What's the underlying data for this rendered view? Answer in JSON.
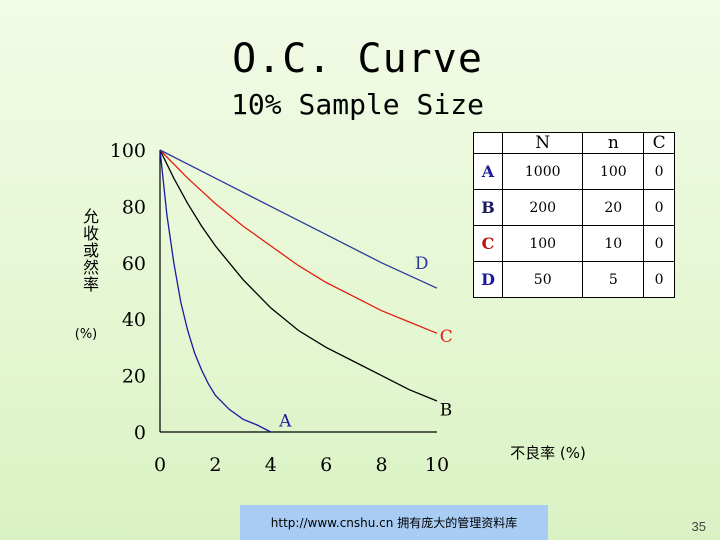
{
  "slide": {
    "title": "O.C. Curve",
    "subtitle": "10% Sample Size",
    "footer_url": "http://www.cnshu.cn 拥有庞大的管理资料库",
    "page_number": "35"
  },
  "chart_data": {
    "type": "line",
    "ylabel": "允收或然率",
    "ylabel_unit": "(%)",
    "xlabel": "不良率 (%)",
    "xlim": [
      0,
      10
    ],
    "ylim": [
      0,
      100
    ],
    "x_ticks": [
      "0",
      "2",
      "4",
      "6",
      "8",
      "10"
    ],
    "y_ticks": [
      "0",
      "20",
      "40",
      "60",
      "80",
      "100"
    ],
    "grid": false,
    "series": [
      {
        "name": "A",
        "color": "#1a1aa0",
        "x": [
          0,
          0.25,
          0.5,
          0.75,
          1,
          1.25,
          1.5,
          1.75,
          2,
          2.5,
          3,
          3.5,
          4
        ],
        "y": [
          100,
          77,
          60,
          46,
          36,
          28,
          22,
          17,
          13,
          8,
          4.5,
          2.5,
          0
        ]
      },
      {
        "name": "B",
        "color": "#000000",
        "x": [
          0,
          0.5,
          1,
          1.5,
          2,
          3,
          4,
          5,
          6,
          7,
          8,
          9,
          10
        ],
        "y": [
          100,
          90,
          81,
          73,
          66,
          54,
          44,
          36,
          30,
          25,
          20,
          15,
          11
        ]
      },
      {
        "name": "C",
        "color": "#e02010",
        "x": [
          0,
          1,
          2,
          3,
          4,
          5,
          6,
          7,
          8,
          9,
          10
        ],
        "y": [
          100,
          90,
          81,
          73,
          66,
          59,
          53,
          48,
          43,
          39,
          35
        ]
      },
      {
        "name": "D",
        "color": "#2a3a9a",
        "x": [
          0,
          2,
          4,
          6,
          8,
          10
        ],
        "y": [
          100,
          90,
          80,
          70,
          60,
          51
        ]
      }
    ],
    "annotations": [
      {
        "text": "A",
        "color": "#1a1aa0",
        "x": 4.3,
        "y": 4
      },
      {
        "text": "B",
        "color": "#000000",
        "x": 10.1,
        "y": 8
      },
      {
        "text": "C",
        "color": "#e02010",
        "x": 10.1,
        "y": 34
      },
      {
        "text": "D",
        "color": "#2a3a9a",
        "x": 9.2,
        "y": 60
      }
    ],
    "table": {
      "headers": [
        "",
        "N",
        "n",
        "C"
      ],
      "rows": [
        {
          "label": "A",
          "color": "#1a1aa0",
          "values": [
            "1000",
            "100",
            "0"
          ]
        },
        {
          "label": "B",
          "color": "#1a1a60",
          "values": [
            "200",
            "20",
            "0"
          ]
        },
        {
          "label": "C",
          "color": "#c01010",
          "values": [
            "100",
            "10",
            "0"
          ]
        },
        {
          "label": "D",
          "color": "#1a1aa0",
          "values": [
            "50",
            "5",
            "0"
          ]
        }
      ]
    }
  }
}
